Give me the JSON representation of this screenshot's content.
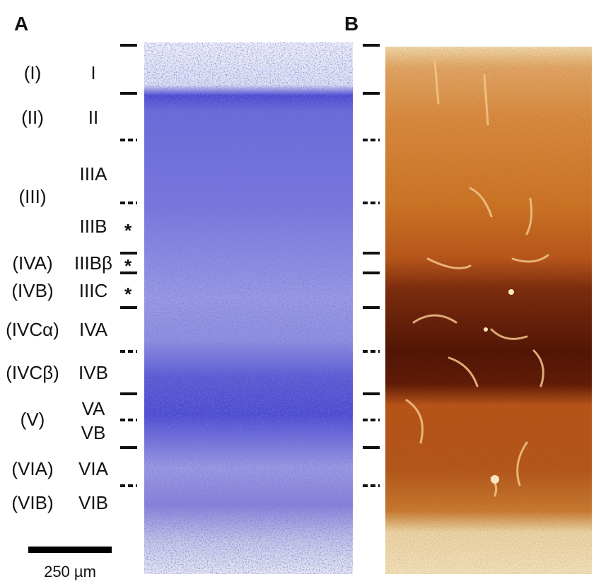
{
  "panels": {
    "a_label": "A",
    "b_label": "B"
  },
  "layers": [
    {
      "alt": "(I)",
      "main": "I"
    },
    {
      "alt": "(II)",
      "main": "II"
    },
    {
      "alt": "",
      "main": "IIIA"
    },
    {
      "alt": "(III)",
      "main": ""
    },
    {
      "alt": "",
      "main": "IIIB"
    },
    {
      "alt": "(IVA)",
      "main": "IIIBβ"
    },
    {
      "alt": "(IVB)",
      "main": "IIIC"
    },
    {
      "alt": "(IVCα)",
      "main": "IVA"
    },
    {
      "alt": "(IVCβ)",
      "main": "IVB"
    },
    {
      "alt": "",
      "main": "VA"
    },
    {
      "alt": "(V)",
      "main": ""
    },
    {
      "alt": "",
      "main": "VB"
    },
    {
      "alt": "(VIA)",
      "main": "VIA"
    },
    {
      "alt": "(VIB)",
      "main": "VIB"
    }
  ],
  "asterisk": "*",
  "scale_bar": {
    "label": "250 µm"
  },
  "colors": {
    "nissl_stain": "#3b3bc8",
    "nissl_background": "#eef0f6",
    "cytochrome_light": "#f3ddb0",
    "cytochrome_mid": "#c86a1e",
    "cytochrome_dark": "#5a1505"
  }
}
